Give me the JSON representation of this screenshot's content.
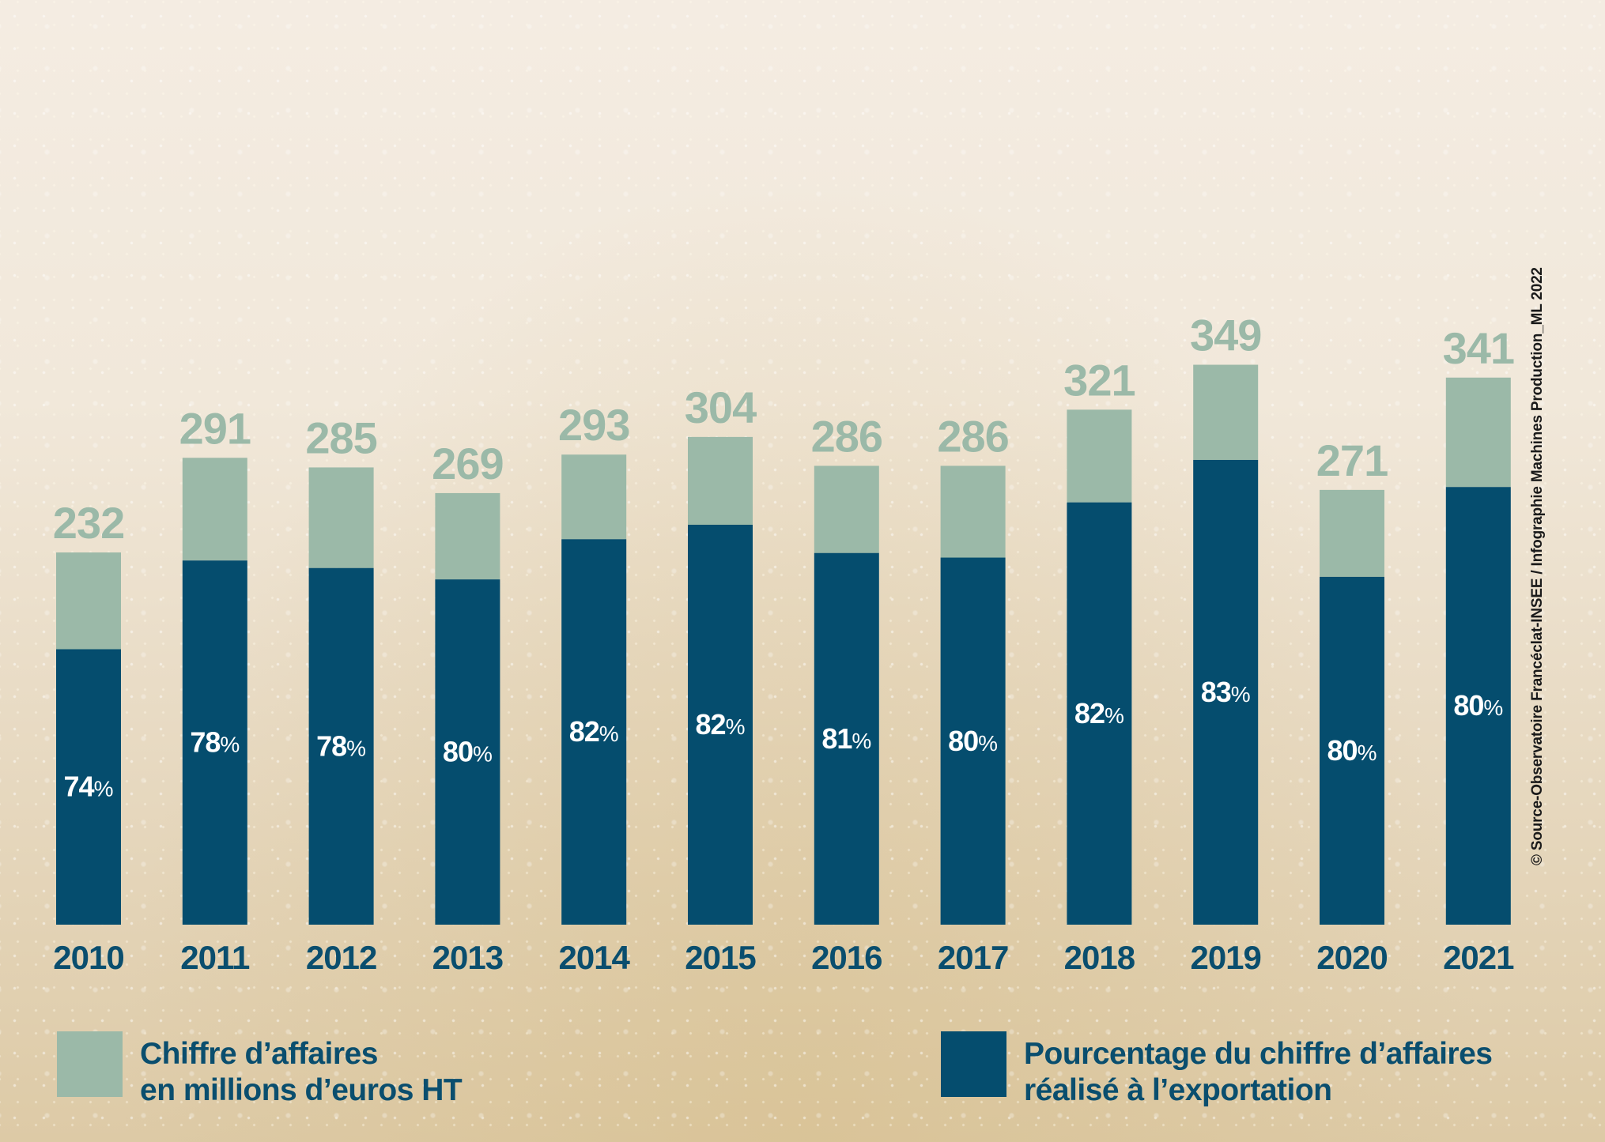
{
  "colors": {
    "revenue": "#9bb9a8",
    "export": "#054d6e",
    "total_label": "#9bb9a8",
    "year_label": "#0a4e6e",
    "pct_label": "#ffffff"
  },
  "chart_data": {
    "type": "bar",
    "categories": [
      "2010",
      "2011",
      "2012",
      "2013",
      "2014",
      "2015",
      "2016",
      "2017",
      "2018",
      "2019",
      "2020",
      "2021"
    ],
    "series": [
      {
        "name": "Chiffre d’affaires en millions d’euros HT",
        "values": [
          232,
          291,
          285,
          269,
          293,
          304,
          286,
          286,
          321,
          349,
          271,
          341
        ]
      },
      {
        "name": "Pourcentage du chiffre d’affaires réalisé à l’exportation",
        "values": [
          74,
          78,
          78,
          80,
          82,
          82,
          81,
          80,
          82,
          83,
          80,
          80
        ]
      }
    ],
    "percent_suffix": "%",
    "ylim": [
      0,
      349
    ],
    "grid": false
  },
  "legend": {
    "revenue_line1": "Chiffre d’affaires",
    "revenue_line2": "en millions d’euros HT",
    "export_line1": "Pourcentage du chiffre d’affaires",
    "export_line2": "réalisé à l’exportation"
  },
  "source": "© Source-Observatoire Francéclat-INSEE / Infographie Machines Production_ML 2022"
}
